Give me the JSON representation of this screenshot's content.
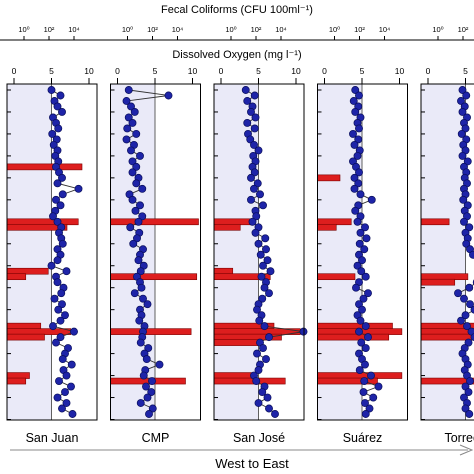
{
  "header": {
    "fecal_axis_title": "Fecal Coliforms (CFU 100ml⁻¹)",
    "oxygen_axis_title": "Dissolved Oxygen (mg l⁻¹)"
  },
  "footer": {
    "direction_label": "West to East"
  },
  "colors": {
    "panel_fill": "#eaeaf8",
    "marker": "#1e24a8",
    "marker_edge": "#0a0f5c",
    "bar": "#dd1e1e",
    "bar_edge": "#7a0000",
    "reference_line": "#606060"
  },
  "chart_data": {
    "type": "scatter",
    "x_top_label": "Fecal Coliforms (CFU 100ml⁻¹)",
    "x_bottom_label": "Dissolved Oxygen (mg l⁻¹)",
    "fecal_scale": "log",
    "fecal_ticks": [
      "10⁰",
      "10²",
      "10⁴"
    ],
    "oxygen_ticks": [
      "0",
      "5",
      "10"
    ],
    "oxygen_xlim": [
      0,
      10
    ],
    "reference_oxygen": 5,
    "sample_index_range": [
      0,
      60
    ],
    "grid": false,
    "panels": [
      {
        "site": "San Juan",
        "oxygen": [
          5.0,
          6.2,
          5.4,
          5.8,
          6.4,
          5.2,
          5.6,
          5.9,
          5.1,
          5.7,
          5.3,
          5.8,
          5.5,
          5.9,
          5.6,
          6.0,
          6.4,
          5.8,
          8.6,
          6.5,
          5.6,
          6.2,
          5.5,
          5.2,
          5.8,
          6.3,
          6.0,
          6.3,
          6.5,
          5.8,
          6.2,
          5.8,
          5.0,
          7.0,
          5.6,
          5.8,
          6.6,
          6.3,
          5.4,
          6.4,
          5.9,
          6.8,
          6.2,
          5.2,
          8.0,
          6.2,
          5.6,
          7.2,
          6.8,
          6.5,
          7.7,
          6.6,
          7.0,
          6.0,
          7.6,
          6.8,
          5.8,
          7.0,
          6.4,
          7.8
        ],
        "fecal_bars": [
          {
            "i": 14,
            "log10": 4.0
          },
          {
            "i": 24,
            "log10": 3.8
          },
          {
            "i": 25,
            "log10": 3.2
          },
          {
            "i": 33,
            "log10": 2.2
          },
          {
            "i": 34,
            "log10": 1.0
          },
          {
            "i": 43,
            "log10": 1.8
          },
          {
            "i": 44,
            "log10": 3.4
          },
          {
            "i": 45,
            "log10": 2.0
          },
          {
            "i": 52,
            "log10": 1.2
          },
          {
            "i": 53,
            "log10": 1.0
          }
        ]
      },
      {
        "site": "CMP",
        "oxygen": [
          1.5,
          6.8,
          1.2,
          1.8,
          2.3,
          1.5,
          2.0,
          1.3,
          2.5,
          1.2,
          2.2,
          1.8,
          3.0,
          2.0,
          2.5,
          2.0,
          2.8,
          2.5,
          3.3,
          1.6,
          2.0,
          3.0,
          2.4,
          3.3,
          2.8,
          1.7,
          2.9,
          2.6,
          2.1,
          3.4,
          3.0,
          2.8,
          3.5,
          3.1,
          2.6,
          3.0,
          3.2,
          2.3,
          3.4,
          4.0,
          3.0,
          3.2,
          2.9,
          3.6,
          3.4,
          3.3,
          3.1,
          4.1,
          3.6,
          3.9,
          5.6,
          3.7,
          3.5,
          4.6,
          3.8,
          4.5,
          4.0,
          3.1,
          4.7,
          4.2
        ],
        "fecal_bars": [
          {
            "i": 24,
            "log10": 5.0
          },
          {
            "i": 34,
            "log10": 4.6
          },
          {
            "i": 44,
            "log10": 4.3
          },
          {
            "i": 53,
            "log10": 4.0
          }
        ]
      },
      {
        "site": "San José",
        "oxygen": [
          3.3,
          4.5,
          3.5,
          4.2,
          4.0,
          4.6,
          3.5,
          4.5,
          3.6,
          3.9,
          4.4,
          5.0,
          4.3,
          4.6,
          4.2,
          4.5,
          4.0,
          4.9,
          4.4,
          5.2,
          4.0,
          5.6,
          4.6,
          4.7,
          4.2,
          5.0,
          4.6,
          5.9,
          5.0,
          6.0,
          5.3,
          6.2,
          5.6,
          6.6,
          5.4,
          6.0,
          5.8,
          6.4,
          5.5,
          5.0,
          4.8,
          5.4,
          5.1,
          5.8,
          11.0,
          6.4,
          5.2,
          5.6,
          4.8,
          6.0,
          5.2,
          5.0,
          4.4,
          4.7,
          5.8,
          5.5,
          6.2,
          5.0,
          6.4,
          7.2
        ],
        "fecal_bars": [
          {
            "i": 24,
            "log10": 2.2
          },
          {
            "i": 25,
            "log10": 1.4
          },
          {
            "i": 33,
            "log10": 1.0
          },
          {
            "i": 34,
            "log10": 3.0
          },
          {
            "i": 43,
            "log10": 3.2
          },
          {
            "i": 44,
            "log10": 4.6
          },
          {
            "i": 45,
            "log10": 3.6
          },
          {
            "i": 46,
            "log10": 2.5
          },
          {
            "i": 52,
            "log10": 2.0
          },
          {
            "i": 53,
            "log10": 3.8
          }
        ]
      },
      {
        "site": "Suárez",
        "oxygen": [
          4.1,
          4.6,
          3.9,
          4.5,
          4.1,
          4.8,
          4.4,
          4.6,
          3.8,
          4.5,
          4.0,
          4.7,
          4.4,
          3.8,
          4.2,
          4.6,
          4.0,
          4.5,
          4.0,
          4.8,
          6.3,
          4.5,
          4.1,
          4.8,
          4.4,
          5.4,
          4.8,
          5.6,
          4.7,
          5.3,
          4.6,
          5.0,
          4.4,
          4.9,
          5.5,
          4.6,
          4.2,
          5.8,
          5.2,
          4.6,
          5.0,
          4.4,
          4.8,
          5.5,
          4.6,
          5.8,
          4.9,
          5.5,
          4.6,
          5.0,
          5.4,
          4.7,
          6.2,
          5.3,
          7.2,
          5.2,
          6.5,
          5.4,
          6.0,
          5.5
        ],
        "fecal_bars": [
          {
            "i": 16,
            "log10": 1.2
          },
          {
            "i": 24,
            "log10": 1.8
          },
          {
            "i": 25,
            "log10": 1.0
          },
          {
            "i": 34,
            "log10": 2.0
          },
          {
            "i": 43,
            "log10": 4.0
          },
          {
            "i": 44,
            "log10": 4.5
          },
          {
            "i": 45,
            "log10": 3.8
          },
          {
            "i": 52,
            "log10": 4.5
          },
          {
            "i": 53,
            "log10": 3.2
          }
        ]
      },
      {
        "site": "Torrecill",
        "oxygen": [
          4.6,
          5.1,
          4.4,
          4.9,
          4.6,
          5.2,
          4.8,
          5.0,
          4.5,
          5.1,
          4.7,
          5.0,
          4.6,
          5.3,
          4.8,
          5.1,
          4.9,
          5.2,
          4.8,
          5.0,
          4.7,
          5.3,
          4.9,
          5.2,
          4.8,
          5.5,
          5.0,
          5.3,
          5.1,
          5.6,
          6.0,
          6.9,
          7.5,
          7.2,
          7.8,
          6.5,
          5.5,
          4.0,
          4.8,
          5.6,
          6.2,
          5.0,
          4.4,
          5.2,
          5.8,
          6.2,
          5.4,
          4.9,
          4.6,
          5.0,
          5.3,
          4.9,
          5.2,
          5.6,
          5.0,
          5.4,
          4.8,
          5.2,
          5.0,
          5.5
        ],
        "fecal_bars": [
          {
            "i": 24,
            "log10": 1.5
          },
          {
            "i": 34,
            "log10": 2.5
          },
          {
            "i": 35,
            "log10": 1.8
          },
          {
            "i": 43,
            "log10": 3.8
          },
          {
            "i": 44,
            "log10": 5.0
          },
          {
            "i": 45,
            "log10": 3.2
          },
          {
            "i": 53,
            "log10": 3.0
          }
        ]
      }
    ]
  }
}
